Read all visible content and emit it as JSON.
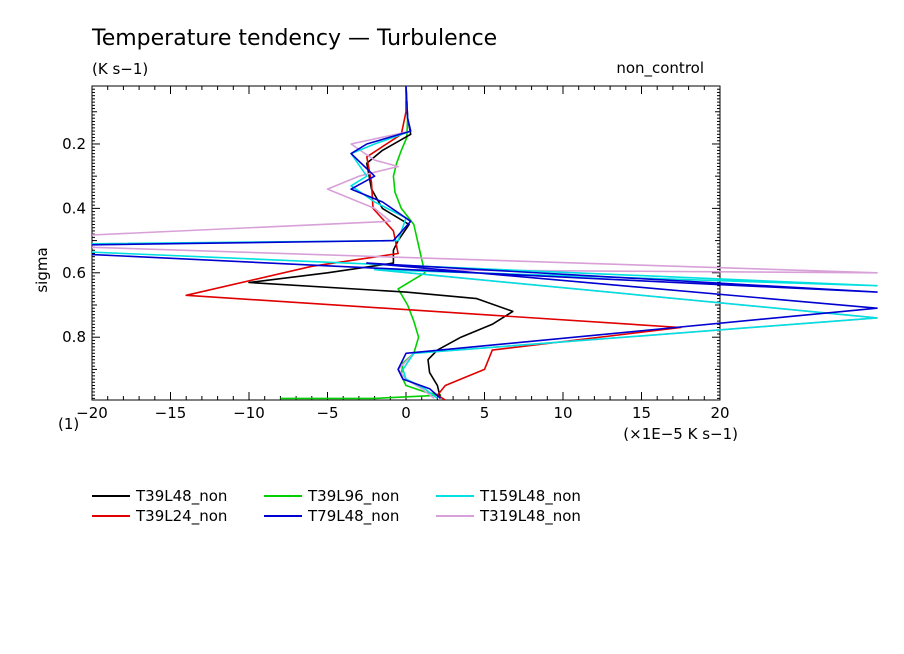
{
  "chart_data": {
    "type": "line",
    "title": "Temperature tendency — Turbulence",
    "units_label": "(K s−1)",
    "tag": "non_control",
    "ylabel": "sigma",
    "xlabel_scale": "(×1E−5 K s−1)",
    "panel_index": "(1)",
    "xlim": [
      -20,
      20
    ],
    "ylim": [
      0.02,
      0.995
    ],
    "y_inverted": true,
    "grid": false,
    "legend_position": "bottom-left",
    "x_ticks": [
      -20,
      -15,
      -10,
      -5,
      0,
      5,
      10,
      15,
      20
    ],
    "x_tick_labels": [
      "−20",
      "−15",
      "−10",
      "−5",
      "0",
      "5",
      "10",
      "15",
      "20"
    ],
    "y_ticks": [
      0.2,
      0.4,
      0.6,
      0.8
    ],
    "y_tick_labels": [
      "0.2",
      "0.4",
      "0.6",
      "0.8"
    ],
    "series": [
      {
        "name": "T39L48_non",
        "color": "#000000",
        "x": [
          0,
          0.1,
          0.3,
          -1.5,
          -2.5,
          -2.2,
          -1.5,
          0.2,
          -0.5,
          -0.8,
          -0.8,
          -5,
          -10,
          0,
          4.5,
          6.8,
          5.5,
          3.5,
          2,
          1.4,
          1.5,
          2,
          2.2
        ],
        "y": [
          0.02,
          0.12,
          0.17,
          0.22,
          0.26,
          0.34,
          0.4,
          0.45,
          0.5,
          0.53,
          0.57,
          0.6,
          0.63,
          0.66,
          0.68,
          0.72,
          0.76,
          0.8,
          0.84,
          0.87,
          0.91,
          0.95,
          0.99
        ]
      },
      {
        "name": "T39L24_non",
        "color": "#e00000",
        "x": [
          0,
          0,
          -0.3,
          -2.5,
          -2.2,
          -2.1,
          -0.8,
          -0.5,
          -6,
          -14,
          17.5,
          5.5,
          5,
          2.5,
          2,
          2.5
        ],
        "y": [
          0.02,
          0.1,
          0.17,
          0.24,
          0.32,
          0.4,
          0.47,
          0.54,
          0.58,
          0.67,
          0.77,
          0.84,
          0.9,
          0.95,
          0.98,
          0.995
        ]
      },
      {
        "name": "T39L96_non",
        "color": "#00d000",
        "x": [
          0,
          0.1,
          0.05,
          -0.3,
          -0.6,
          -0.8,
          -0.7,
          -0.3,
          0.5,
          1.2,
          -0.5,
          0.1,
          0.5,
          0.8,
          0.5,
          -0.2,
          -0.3,
          0,
          1.2,
          2.2,
          -2,
          -8
        ],
        "y": [
          0.02,
          0.12,
          0.18,
          0.22,
          0.26,
          0.3,
          0.35,
          0.4,
          0.45,
          0.6,
          0.65,
          0.7,
          0.75,
          0.8,
          0.85,
          0.88,
          0.92,
          0.95,
          0.97,
          0.98,
          0.99,
          0.99
        ]
      },
      {
        "name": "T79L48_non",
        "color": "#0000d0",
        "x": [
          0,
          0.1,
          0.3,
          -2.5,
          -3.5,
          -2,
          -3.5,
          -1.5,
          0.3,
          -0.8,
          -30,
          30,
          -2.5,
          30,
          0,
          -0.5,
          -0.2,
          1.5,
          2.2
        ],
        "y": [
          0.02,
          0.12,
          0.16,
          0.2,
          0.23,
          0.3,
          0.34,
          0.38,
          0.44,
          0.5,
          0.52,
          0.66,
          0.57,
          0.71,
          0.85,
          0.9,
          0.93,
          0.96,
          0.99
        ]
      },
      {
        "name": "T159L48_non",
        "color": "#00e0e0",
        "x": [
          0,
          0.1,
          0.3,
          -2,
          -3.5,
          -2.5,
          -3.5,
          -2,
          0,
          -0.5,
          -30,
          30,
          -2,
          30,
          0.5,
          -0.2,
          0,
          1.2,
          2
        ],
        "y": [
          0.02,
          0.12,
          0.16,
          0.2,
          0.23,
          0.3,
          0.33,
          0.38,
          0.43,
          0.5,
          0.515,
          0.64,
          0.59,
          0.74,
          0.85,
          0.9,
          0.93,
          0.96,
          0.99
        ]
      },
      {
        "name": "T319L48_non",
        "color": "#d8a0d8",
        "x": [
          0,
          0.1,
          0.3,
          -3.5,
          -2,
          -0.5,
          -3,
          -5,
          -2,
          -1,
          -30,
          30,
          -2,
          30,
          0.5,
          -0.5,
          0,
          1,
          1.8
        ],
        "y": [
          0.02,
          0.12,
          0.16,
          0.2,
          0.25,
          0.27,
          0.3,
          0.34,
          0.4,
          0.44,
          0.505,
          0.6,
          0.59,
          0.74,
          0.85,
          0.9,
          0.93,
          0.96,
          0.99
        ]
      }
    ]
  }
}
